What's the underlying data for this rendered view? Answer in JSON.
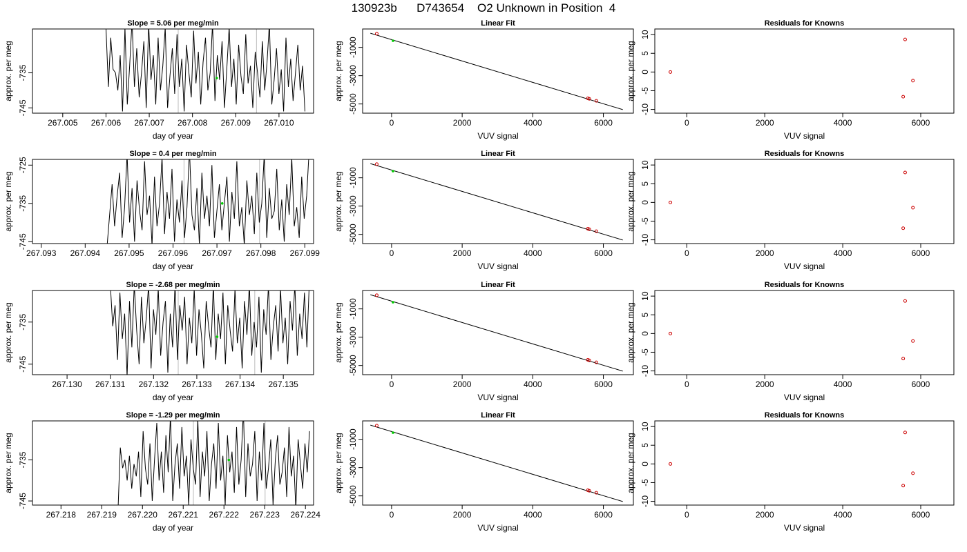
{
  "title": "130923b      D743654    O2 Unknown in Position  4",
  "colors": {
    "trace": "#000000",
    "known_point": "#cc0000",
    "unknown_point": "#00cc00",
    "frame": "#000000",
    "marker_line": "#bbbbbb"
  },
  "chart_data": [
    {
      "panel": "slope-1",
      "type": "line",
      "title": "Slope =  5.06  per meg/min",
      "xlabel": "day of year",
      "ylabel": "approx. per meg",
      "xlim": [
        267.0043,
        267.0108
      ],
      "ylim": [
        -746.5,
        -722.5
      ],
      "xticks": [
        "267.005",
        "267.006",
        "267.007",
        "267.008",
        "267.009",
        "267.010"
      ],
      "yticks": [
        "-735",
        "-745"
      ],
      "x_start": 267.006,
      "x_end": 267.0106,
      "values": [
        -722,
        -739,
        -725,
        -734,
        -735,
        -740,
        -730,
        -746,
        -722,
        -744,
        -733,
        -720,
        -739,
        -728,
        -742,
        -735,
        -726,
        -745,
        -721,
        -737,
        -730,
        -744,
        -725,
        -740,
        -733,
        -722,
        -745,
        -736,
        -728,
        -741,
        -724,
        -739,
        -731,
        -746,
        -727,
        -735,
        -742,
        -723,
        -738,
        -729,
        -744,
        -732,
        -725,
        -740,
        -735,
        -721,
        -743,
        -730,
        -737,
        -726,
        -745,
        -734,
        -722,
        -739,
        -731,
        -744,
        -727,
        -736,
        -741,
        -724,
        -738,
        -733,
        -745,
        -729,
        -735,
        -742,
        -726,
        -740,
        -732,
        -721,
        -744,
        -737,
        -728,
        -741,
        -734,
        -746,
        -725,
        -739,
        -731,
        -743,
        -735,
        -727,
        -740,
        -733,
        -746
      ],
      "markers": [
        267.00767,
        267.00948
      ],
      "green_point": [
        267.00856,
        -736.5
      ]
    },
    {
      "panel": "fit-1",
      "type": "scatter",
      "title": "Linear Fit",
      "xlabel": "VUV signal",
      "ylabel": "approx. per meg",
      "xlim": [
        -820,
        6850
      ],
      "ylim": [
        -5650,
        300
      ],
      "xticks": [
        0,
        2000,
        4000,
        6000
      ],
      "yticks": [
        -1000,
        -3000,
        -5000
      ],
      "line": [
        [
          -600,
          0
        ],
        [
          6550,
          -5400
        ]
      ],
      "known_points": [
        [
          -420,
          -35
        ],
        [
          5560,
          -4600
        ],
        [
          5600,
          -4640
        ],
        [
          5800,
          -4780
        ]
      ],
      "unknown_point": [
        40,
        -530
      ]
    },
    {
      "panel": "resid-1",
      "type": "scatter",
      "title": "Residuals for Knowns",
      "xlabel": "VUV signal",
      "ylabel": "approx. per meg",
      "xlim": [
        -820,
        6850
      ],
      "ylim": [
        -11,
        11.5
      ],
      "xticks": [
        0,
        2000,
        4000,
        6000
      ],
      "yticks": [
        10,
        5,
        0,
        -5,
        -10
      ],
      "points": [
        [
          -420,
          0
        ],
        [
          5600,
          8.7
        ],
        [
          5800,
          -2.3
        ],
        [
          5550,
          -6.6
        ]
      ]
    },
    {
      "panel": "slope-2",
      "type": "line",
      "title": "Slope =  0.4  per meg/min",
      "xlabel": "day of year",
      "ylabel": "approx. per meg",
      "xlim": [
        267.0928,
        267.0992
      ],
      "ylim": [
        -745.5,
        -723.5
      ],
      "xticks": [
        "267.093",
        "267.094",
        "267.095",
        "267.096",
        "267.097",
        "267.098",
        "267.099"
      ],
      "yticks": [
        "-725",
        "-735",
        "-745"
      ],
      "x_start": 267.0945,
      "x_end": 267.0991,
      "values": [
        -746,
        -738,
        -730,
        -741,
        -733,
        -727,
        -744,
        -736,
        -722,
        -740,
        -731,
        -745,
        -729,
        -737,
        -742,
        -724,
        -738,
        -733,
        -746,
        -728,
        -741,
        -735,
        -723,
        -743,
        -732,
        -739,
        -726,
        -745,
        -734,
        -740,
        -729,
        -744,
        -736,
        -721,
        -738,
        -742,
        -731,
        -746,
        -727,
        -739,
        -733,
        -741,
        -725,
        -744,
        -737,
        -730,
        -742,
        -735,
        -728,
        -745,
        -732,
        -739,
        -724,
        -741,
        -736,
        -746,
        -729,
        -738,
        -733,
        -743,
        -727,
        -740,
        -735,
        -722,
        -744,
        -731,
        -739,
        -737,
        -726,
        -742,
        -734,
        -745,
        -730,
        -738,
        -723,
        -741,
        -736,
        -744,
        -728,
        -739,
        -733,
        -721
      ],
      "markers": [
        267.09625,
        267.09797
      ],
      "green_point": [
        267.09712,
        -735
      ]
    },
    {
      "panel": "fit-2",
      "type": "scatter",
      "title": "Linear Fit",
      "xlabel": "VUV signal",
      "ylabel": "approx. per meg",
      "xlim": [
        -820,
        6850
      ],
      "ylim": [
        -5650,
        300
      ],
      "xticks": [
        0,
        2000,
        4000,
        6000
      ],
      "yticks": [
        -1000,
        -3000,
        -5000
      ],
      "line": [
        [
          -600,
          0
        ],
        [
          6550,
          -5400
        ]
      ],
      "known_points": [
        [
          -420,
          -35
        ],
        [
          5560,
          -4600
        ],
        [
          5600,
          -4640
        ],
        [
          5800,
          -4780
        ]
      ],
      "unknown_point": [
        40,
        -530
      ]
    },
    {
      "panel": "resid-2",
      "type": "scatter",
      "title": "Residuals for Knowns",
      "xlabel": "VUV signal",
      "ylabel": "approx. per meg",
      "xlim": [
        -820,
        6850
      ],
      "ylim": [
        -11,
        11.5
      ],
      "xticks": [
        0,
        2000,
        4000,
        6000
      ],
      "yticks": [
        10,
        5,
        0,
        -5,
        -10
      ],
      "points": [
        [
          -420,
          0
        ],
        [
          5600,
          8.0
        ],
        [
          5800,
          -1.4
        ],
        [
          5550,
          -6.9
        ]
      ]
    },
    {
      "panel": "slope-3",
      "type": "line",
      "title": "Slope =  -2.68  per meg/min",
      "xlabel": "day of year",
      "ylabel": "approx. per meg",
      "xlim": [
        267.1292,
        267.1357
      ],
      "ylim": [
        -747.5,
        -727.5
      ],
      "xticks": [
        "267.130",
        "267.131",
        "267.132",
        "267.133",
        "267.134",
        "267.135"
      ],
      "yticks": [
        "-735",
        "-745"
      ],
      "x_start": 267.131,
      "x_end": 267.1356,
      "values": [
        -726,
        -736,
        -731,
        -744,
        -728,
        -739,
        -733,
        -748,
        -730,
        -741,
        -726,
        -737,
        -745,
        -729,
        -740,
        -734,
        -726,
        -746,
        -732,
        -738,
        -727,
        -743,
        -735,
        -730,
        -747,
        -733,
        -741,
        -726,
        -744,
        -731,
        -737,
        -729,
        -745,
        -734,
        -740,
        -727,
        -743,
        -732,
        -738,
        -746,
        -730,
        -736,
        -741,
        -726,
        -744,
        -733,
        -739,
        -728,
        -745,
        -731,
        -737,
        -742,
        -727,
        -740,
        -734,
        -746,
        -730,
        -738,
        -726,
        -743,
        -735,
        -741,
        -729,
        -747,
        -732,
        -738,
        -726,
        -744,
        -736,
        -731,
        -742,
        -727,
        -740,
        -734,
        -745,
        -730,
        -737,
        -726,
        -743,
        -733,
        -739,
        -728,
        -741,
        -726
      ],
      "markers": [
        267.13257,
        267.13434
      ],
      "green_point": [
        267.13347,
        -738.5
      ]
    },
    {
      "panel": "fit-3",
      "type": "scatter",
      "title": "Linear Fit",
      "xlabel": "VUV signal",
      "ylabel": "approx. per meg",
      "xlim": [
        -820,
        6850
      ],
      "ylim": [
        -5650,
        300
      ],
      "xticks": [
        0,
        2000,
        4000,
        6000
      ],
      "yticks": [
        -1000,
        -3000,
        -5000
      ],
      "line": [
        [
          -600,
          0
        ],
        [
          6550,
          -5400
        ]
      ],
      "known_points": [
        [
          -420,
          -35
        ],
        [
          5560,
          -4600
        ],
        [
          5600,
          -4640
        ],
        [
          5800,
          -4780
        ]
      ],
      "unknown_point": [
        40,
        -530
      ]
    },
    {
      "panel": "resid-3",
      "type": "scatter",
      "title": "Residuals for Knowns",
      "xlabel": "VUV signal",
      "ylabel": "approx. per meg",
      "xlim": [
        -820,
        6850
      ],
      "ylim": [
        -11,
        11.5
      ],
      "xticks": [
        0,
        2000,
        4000,
        6000
      ],
      "yticks": [
        10,
        5,
        0,
        -5,
        -10
      ],
      "points": [
        [
          -420,
          0
        ],
        [
          5600,
          8.7
        ],
        [
          5800,
          -2.0
        ],
        [
          5550,
          -6.7
        ]
      ]
    },
    {
      "panel": "slope-4",
      "type": "line",
      "title": "Slope =  -1.29  per meg/min",
      "xlabel": "day of year",
      "ylabel": "approx. per meg",
      "xlim": [
        267.2173,
        267.2242
      ],
      "ylim": [
        -746,
        -725.5
      ],
      "xticks": [
        "267.218",
        "267.219",
        "267.220",
        "267.221",
        "267.222",
        "267.223",
        "267.224"
      ],
      "yticks": [
        "-735",
        "-745"
      ],
      "x_start": 267.2194,
      "x_end": 267.2241,
      "values": [
        -747,
        -732,
        -737,
        -735,
        -740,
        -734,
        -742,
        -736,
        -739,
        -733,
        -744,
        -728,
        -737,
        -741,
        -731,
        -745,
        -735,
        -726,
        -740,
        -733,
        -743,
        -729,
        -738,
        -724,
        -745,
        -736,
        -731,
        -742,
        -727,
        -739,
        -734,
        -746,
        -730,
        -737,
        -741,
        -725,
        -744,
        -733,
        -739,
        -728,
        -745,
        -736,
        -731,
        -742,
        -726,
        -740,
        -734,
        -746,
        -729,
        -738,
        -733,
        -743,
        -727,
        -741,
        -735,
        -723,
        -744,
        -731,
        -739,
        -736,
        -728,
        -745,
        -733,
        -740,
        -726,
        -742,
        -737,
        -730,
        -746,
        -735,
        -729,
        -741,
        -738,
        -732,
        -744,
        -727,
        -739,
        -734,
        -747,
        -730,
        -736,
        -742,
        -731,
        -738,
        -728
      ],
      "markers": [
        267.22125,
        267.22301
      ],
      "green_point": [
        267.22212,
        -735
      ]
    },
    {
      "panel": "fit-4",
      "type": "scatter",
      "title": "Linear Fit",
      "xlabel": "VUV signal",
      "ylabel": "approx. per meg",
      "xlim": [
        -820,
        6850
      ],
      "ylim": [
        -5650,
        300
      ],
      "xticks": [
        0,
        2000,
        4000,
        6000
      ],
      "yticks": [
        -1000,
        -3000,
        -5000
      ],
      "line": [
        [
          -600,
          0
        ],
        [
          6550,
          -5400
        ]
      ],
      "known_points": [
        [
          -420,
          -35
        ],
        [
          5560,
          -4600
        ],
        [
          5600,
          -4640
        ],
        [
          5800,
          -4780
        ]
      ],
      "unknown_point": [
        40,
        -530
      ]
    },
    {
      "panel": "resid-4",
      "type": "scatter",
      "title": "Residuals for Knowns",
      "xlabel": "VUV signal",
      "ylabel": "approx. per meg",
      "xlim": [
        -820,
        6850
      ],
      "ylim": [
        -11,
        11.5
      ],
      "xticks": [
        0,
        2000,
        4000,
        6000
      ],
      "yticks": [
        10,
        5,
        0,
        -5,
        -10
      ],
      "points": [
        [
          -420,
          0
        ],
        [
          5600,
          8.4
        ],
        [
          5800,
          -2.5
        ],
        [
          5550,
          -5.8
        ]
      ]
    }
  ]
}
